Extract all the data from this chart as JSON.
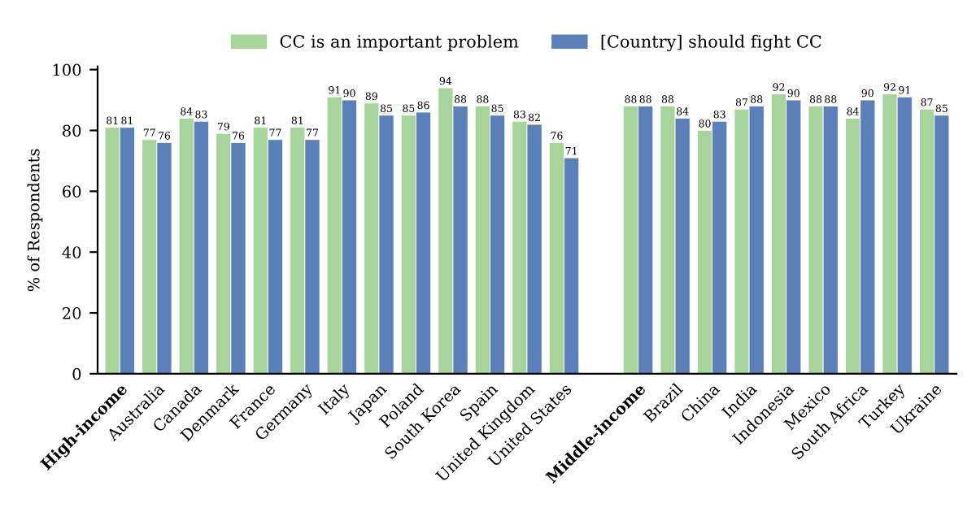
{
  "chart_data": {
    "type": "bar",
    "ylabel": "% of Respondents",
    "categories": [
      "High-income",
      "Australia",
      "Canada",
      "Denmark",
      "France",
      "Germany",
      "Italy",
      "Japan",
      "Poland",
      "South Korea",
      "Spain",
      "United Kingdom",
      "United States",
      null,
      "Middle-income",
      "Brazil",
      "China",
      "India",
      "Indonesia",
      "Mexico",
      "South Africa",
      "Turkey",
      "Ukraine"
    ],
    "series": [
      {
        "name": "CC is an important problem",
        "color": "#a6d49a",
        "values": [
          81,
          77,
          84,
          79,
          81,
          81,
          91,
          89,
          85,
          94,
          88,
          83,
          76,
          null,
          88,
          88,
          80,
          87,
          92,
          88,
          84,
          92,
          87
        ]
      },
      {
        "name": "[Country] should fight CC",
        "color": "#5b7fb8",
        "values": [
          81,
          76,
          83,
          76,
          77,
          77,
          90,
          85,
          86,
          88,
          85,
          82,
          71,
          null,
          88,
          84,
          83,
          88,
          90,
          88,
          90,
          91,
          85
        ]
      }
    ],
    "ylim": [
      0,
      101
    ],
    "yticks": [
      0,
      20,
      40,
      60,
      80,
      100
    ],
    "data_labels": true,
    "legend": "top",
    "grid": false
  }
}
